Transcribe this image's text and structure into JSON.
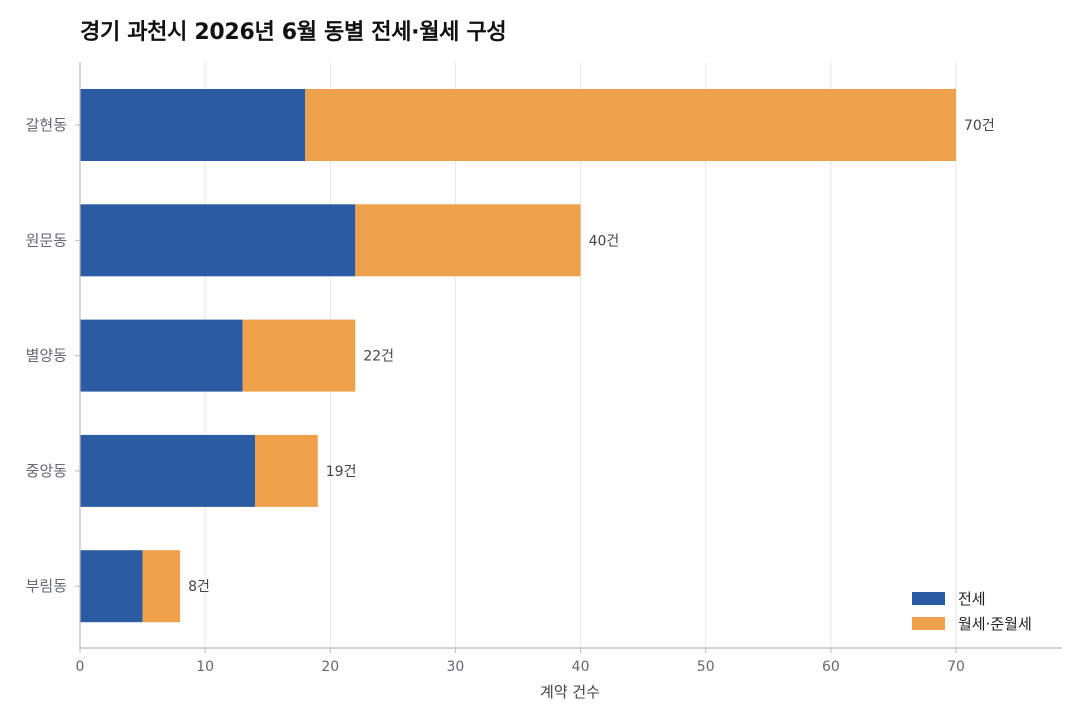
{
  "colors": {
    "jeonse": "#2b5ca3",
    "wolse": "#eea04b",
    "grid": "#e6e6e6",
    "axis": "#bbbbbb",
    "tick_text": "#666677",
    "label_text": "#444444"
  },
  "chart_data": {
    "type": "bar",
    "orientation": "horizontal",
    "stacked": true,
    "title": "경기 과천시 2026년 6월 동별 전세·월세 구성",
    "xlabel": "계약 건수",
    "ylabel": "",
    "xlim": [
      0,
      78
    ],
    "xticks": [
      0,
      10,
      20,
      30,
      40,
      50,
      60,
      70
    ],
    "grid": "vertical",
    "legend_position": "bottom-right",
    "categories": [
      "갈현동",
      "원문동",
      "별양동",
      "중앙동",
      "부림동"
    ],
    "series": [
      {
        "name": "전세",
        "values": [
          18,
          22,
          13,
          14,
          5
        ]
      },
      {
        "name": "월세·준월세",
        "values": [
          52,
          18,
          9,
          5,
          3
        ]
      }
    ],
    "total_labels": [
      "70건",
      "40건",
      "22건",
      "19건",
      "8건"
    ]
  }
}
